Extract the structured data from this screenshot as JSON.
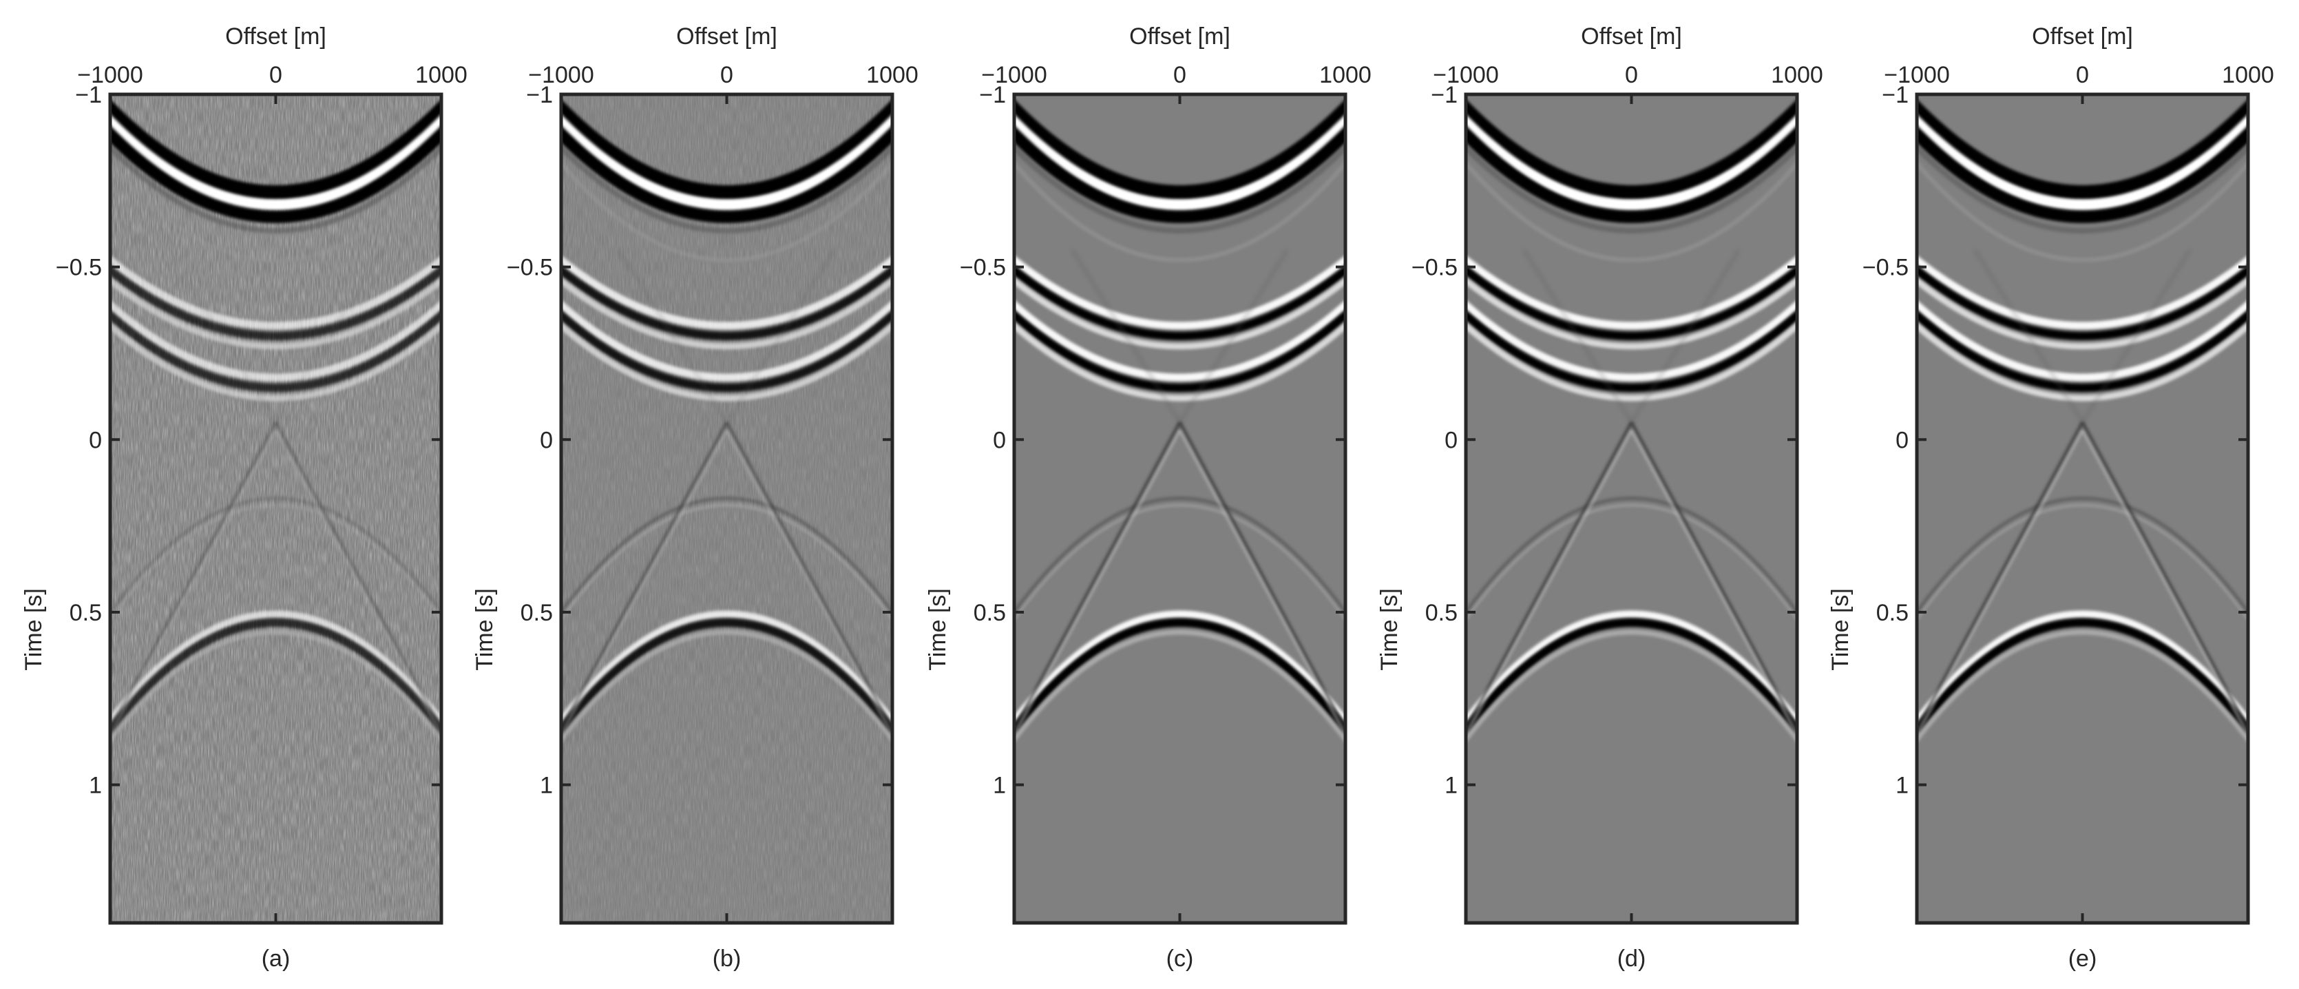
{
  "chart_data": {
    "type": "seismic-gather-image",
    "colormap": "grayscale",
    "shared_axes": {
      "xlabel": "Offset [m]",
      "ylabel": "Time [s]",
      "xlim": [
        -1000,
        1000
      ],
      "ylim": [
        -1,
        1.4
      ],
      "xticks": [
        -1000,
        0,
        1000
      ],
      "xtick_labels": [
        "−1000",
        "0",
        "1000"
      ],
      "yticks": [
        -1,
        -0.5,
        0,
        0.5,
        1
      ],
      "ytick_labels": [
        "−1",
        "−0.5",
        "0",
        "0.5",
        "1"
      ],
      "x_axis_position": "top",
      "y_axis_direction": "downward"
    },
    "panels": [
      {
        "caption": "(a)",
        "quality": "noisy"
      },
      {
        "caption": "(b)",
        "quality": "partially denoised"
      },
      {
        "caption": "(c)",
        "quality": "clean"
      },
      {
        "caption": "(d)",
        "quality": "clean"
      },
      {
        "caption": "(e)",
        "quality": "clean"
      }
    ],
    "events": [
      {
        "name": "upper-hyperbola-1",
        "apex_time": -0.68,
        "edge_time": -0.92,
        "polarity": "black-white-black",
        "strength": 1.0
      },
      {
        "name": "upper-hyperbola-2",
        "apex_time": -0.3,
        "edge_time": -0.49,
        "polarity": "white-black",
        "strength": 0.75
      },
      {
        "name": "upper-hyperbola-3",
        "apex_time": -0.15,
        "edge_time": -0.36,
        "polarity": "white-black",
        "strength": 0.7
      },
      {
        "name": "lower-hyperbola",
        "apex_time": 0.53,
        "edge_time": 0.84,
        "polarity": "white-black",
        "strength": 0.8
      },
      {
        "name": "crossing-diagonals",
        "apex_time": -0.05,
        "edge_time": 0.84,
        "polarity": "grey",
        "strength": 0.3
      }
    ]
  }
}
